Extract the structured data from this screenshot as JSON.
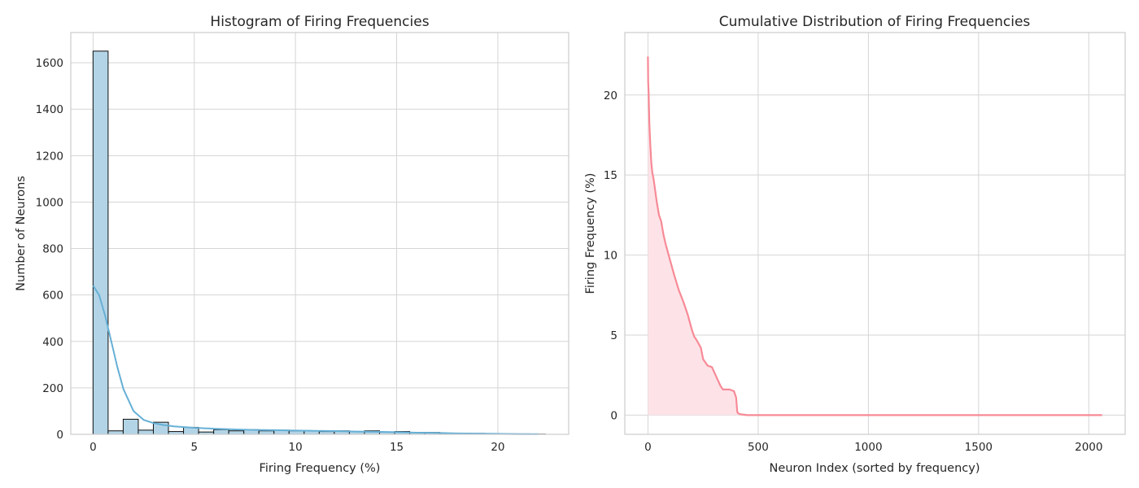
{
  "chart_data": [
    {
      "type": "bar",
      "title": "Histogram of Firing Frequencies",
      "xlabel": "Firing Frequency (%)",
      "ylabel": "Number of Neurons",
      "xlim": [
        -1.1,
        23.5
      ],
      "ylim": [
        0,
        1730
      ],
      "xticks": [
        0,
        5,
        10,
        15,
        20
      ],
      "yticks": [
        0,
        200,
        400,
        600,
        800,
        1000,
        1200,
        1400,
        1600
      ],
      "grid": true,
      "bin_start": 0,
      "bin_width": 0.745,
      "values": [
        1650,
        15,
        65,
        18,
        52,
        12,
        30,
        10,
        20,
        15,
        20,
        15,
        18,
        15,
        15,
        12,
        15,
        12,
        15,
        10,
        12,
        8,
        8,
        5,
        5,
        4,
        3,
        2,
        2,
        1
      ],
      "bar_color": "#b3d4e6",
      "edge_color": "#111111",
      "kde": {
        "x": [
          0,
          0.3,
          0.6,
          0.9,
          1.2,
          1.5,
          2,
          2.5,
          3,
          3.5,
          4,
          5,
          6,
          7,
          8,
          9,
          10,
          11,
          12,
          13,
          14,
          15,
          16,
          17,
          18,
          19,
          20,
          21,
          22
        ],
        "y": [
          640,
          600,
          510,
          400,
          290,
          195,
          100,
          62,
          48,
          40,
          34,
          28,
          24,
          21,
          19,
          18,
          16,
          15,
          14,
          12,
          11,
          9,
          7,
          6,
          4,
          3,
          2,
          1,
          1
        ],
        "color": "#66b0d6"
      }
    },
    {
      "type": "area",
      "title": "Cumulative Distribution of Firing Frequencies",
      "xlabel": "Neuron Index (sorted by frequency)",
      "ylabel": "Firing Frequency (%)",
      "xlim": [
        -105,
        2165
      ],
      "ylim": [
        -1.2,
        23.9
      ],
      "xticks": [
        0,
        500,
        1000,
        1500,
        2000
      ],
      "yticks": [
        0,
        5,
        10,
        15,
        20
      ],
      "grid": true,
      "line_color": "#f78a96",
      "fill_color": "#fde3e8",
      "x": [
        0,
        1,
        3,
        6,
        10,
        15,
        20,
        25,
        30,
        40,
        50,
        60,
        70,
        80,
        100,
        120,
        140,
        160,
        180,
        200,
        210,
        220,
        240,
        250,
        260,
        270,
        290,
        300,
        320,
        330,
        340,
        350,
        370,
        390,
        400,
        405,
        410,
        420,
        450,
        500,
        2060
      ],
      "y": [
        22.4,
        20.8,
        20.1,
        18.3,
        17.0,
        15.8,
        15.1,
        14.8,
        14.3,
        13.3,
        12.5,
        12.1,
        11.3,
        10.7,
        9.7,
        8.7,
        7.8,
        7.1,
        6.3,
        5.3,
        4.9,
        4.7,
        4.2,
        3.5,
        3.3,
        3.1,
        3.0,
        2.7,
        2.1,
        1.8,
        1.6,
        1.6,
        1.6,
        1.5,
        1.1,
        0.2,
        0.1,
        0.05,
        0.0,
        0.0,
        0.0
      ]
    }
  ]
}
